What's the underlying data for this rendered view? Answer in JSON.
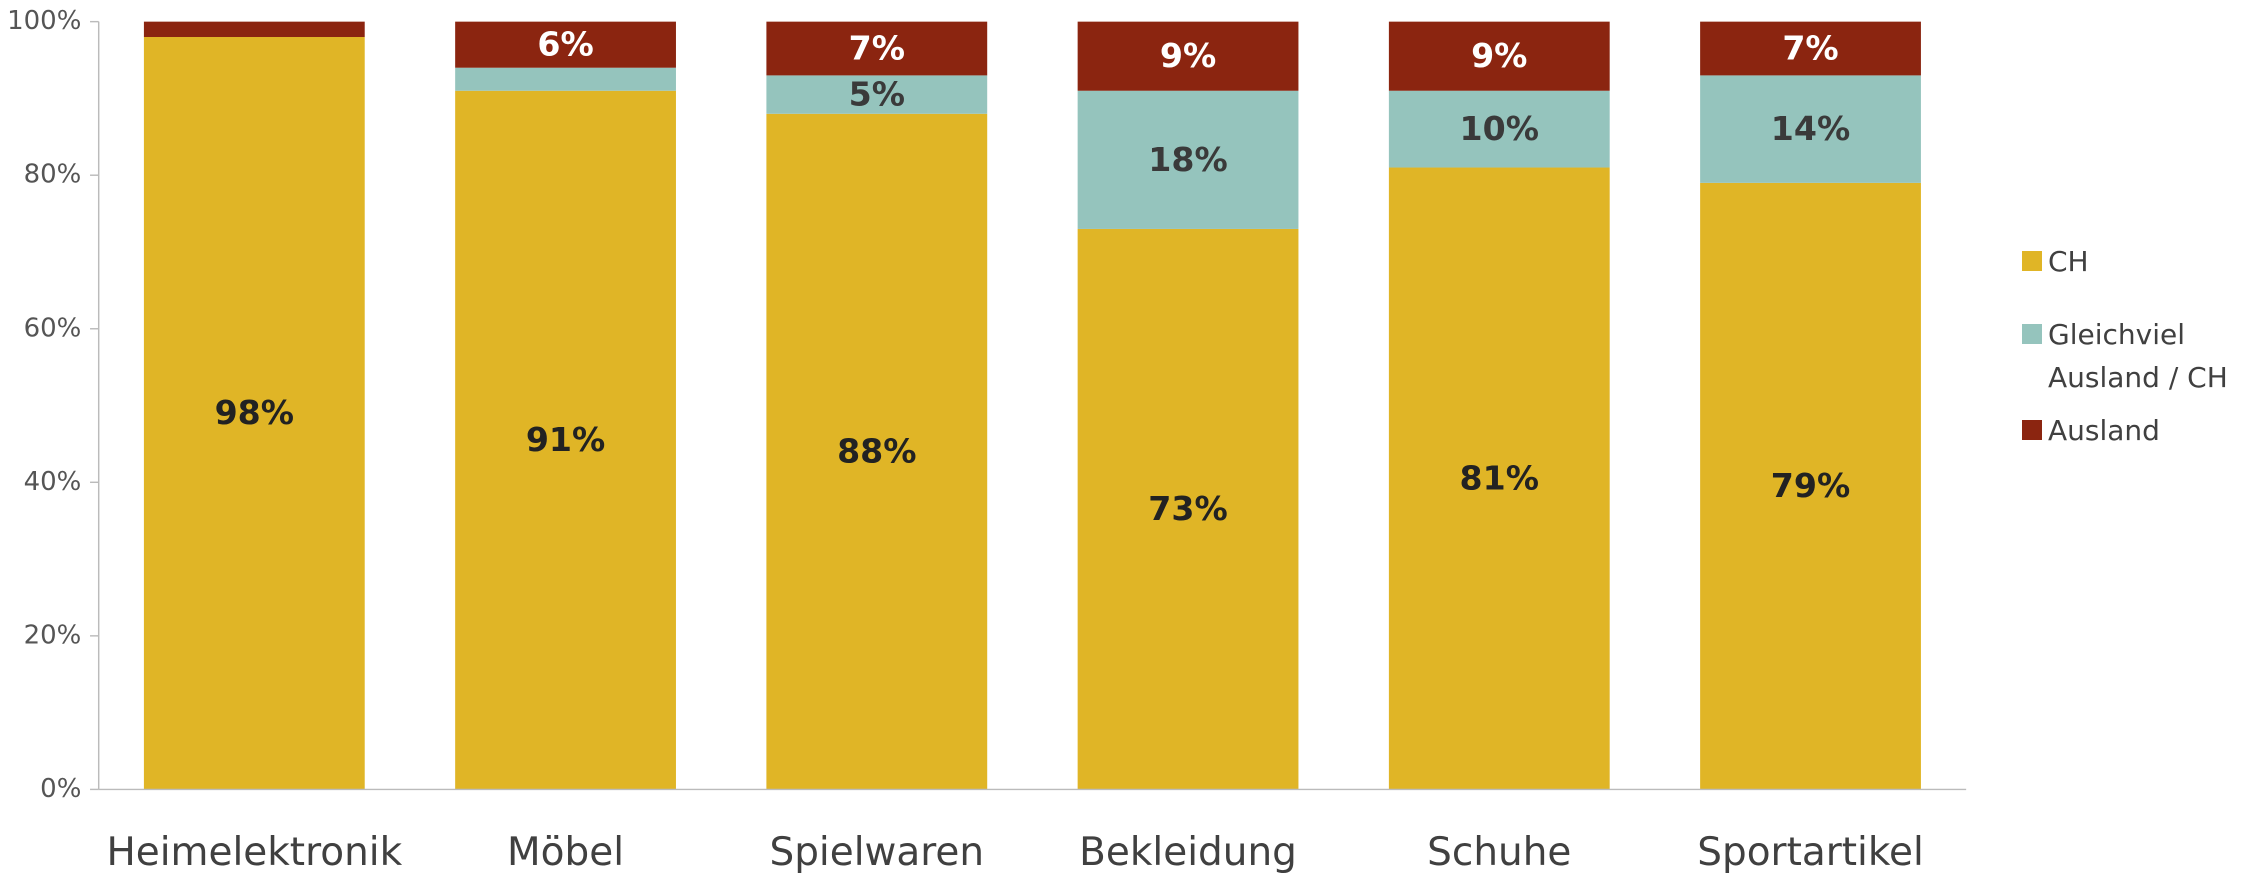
{
  "chart_data": {
    "type": "stacked_bar",
    "categories": [
      "Heimelektronik",
      "Möbel",
      "Spielwaren",
      "Bekleidung",
      "Schuhe",
      "Sportartikel"
    ],
    "series": [
      {
        "name": "CH",
        "color": "#e0b526",
        "values": [
          98,
          91,
          88,
          73,
          81,
          79
        ],
        "value_labels": [
          "98%",
          "91%",
          "88%",
          "73%",
          "81%",
          "79%"
        ]
      },
      {
        "name": "Gleichviel Ausland / CH",
        "color": "#95c4bd",
        "values": [
          0,
          3,
          5,
          18,
          10,
          14
        ],
        "value_labels": [
          null,
          null,
          "5%",
          "18%",
          "10%",
          "14%"
        ]
      },
      {
        "name": "Ausland",
        "color": "#8b2510",
        "values": [
          2,
          6,
          7,
          9,
          9,
          7
        ],
        "value_labels": [
          null,
          "6%",
          "7%",
          "9%",
          "9%",
          "7%"
        ]
      }
    ],
    "ylim": [
      0,
      100
    ],
    "yticks": [
      {
        "value": 0,
        "label": "0%"
      },
      {
        "value": 20,
        "label": "20%"
      },
      {
        "value": 40,
        "label": "40%"
      },
      {
        "value": 60,
        "label": "60%"
      },
      {
        "value": 80,
        "label": "80%"
      },
      {
        "value": 100,
        "label": "100%"
      }
    ],
    "legend": "right"
  }
}
